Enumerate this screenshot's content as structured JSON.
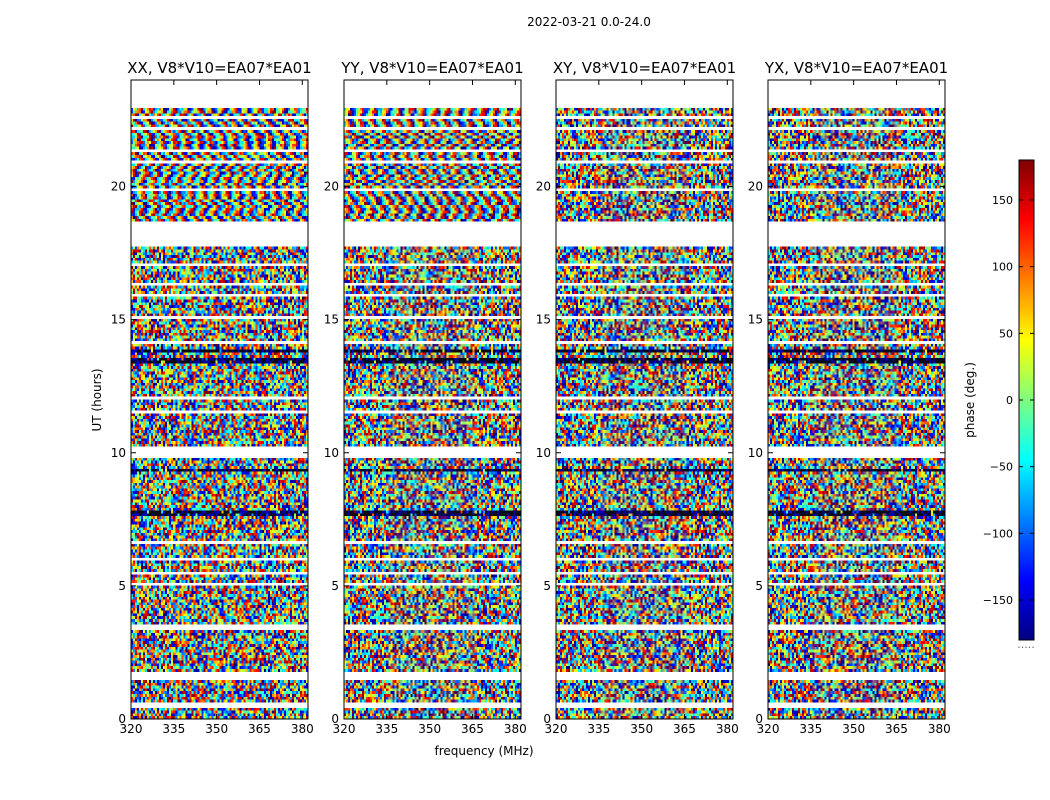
{
  "suptitle": "2022-03-21 0.0-24.0",
  "chart_data": {
    "type": "heatmap",
    "xlabel": "frequency (MHz)",
    "ylabel": "UT (hours)",
    "xlim": [
      320,
      382
    ],
    "ylim": [
      0,
      24
    ],
    "xticks": [
      "320",
      "335",
      "350",
      "365",
      "380"
    ],
    "xtick_values": [
      320,
      335,
      350,
      365,
      380
    ],
    "yticks": [
      "0",
      "5",
      "10",
      "15",
      "20"
    ],
    "ytick_values": [
      0,
      5,
      10,
      15,
      20
    ],
    "panels": [
      {
        "title": "XX, V8*V10=EA07*EA01",
        "structure": "fringe"
      },
      {
        "title": "YY, V8*V10=EA07*EA01",
        "structure": "fringe"
      },
      {
        "title": "XY, V8*V10=EA07*EA01",
        "structure": "noise"
      },
      {
        "title": "YX, V8*V10=EA07*EA01",
        "structure": "noise"
      }
    ],
    "data_extent_hours": [
      0.0,
      23.0
    ],
    "flagged_hours": [
      [
        0.45,
        0.6
      ],
      [
        1.45,
        1.75
      ],
      [
        3.35,
        3.55
      ],
      [
        5.05,
        5.15
      ],
      [
        5.45,
        5.55
      ],
      [
        5.95,
        6.05
      ],
      [
        6.55,
        6.65
      ],
      [
        9.85,
        10.25
      ],
      [
        11.45,
        11.55
      ],
      [
        12.05,
        12.15
      ],
      [
        14.05,
        14.15
      ],
      [
        15.05,
        15.15
      ],
      [
        15.85,
        15.95
      ],
      [
        16.25,
        16.35
      ],
      [
        17.05,
        17.15
      ],
      [
        17.7,
        18.7
      ],
      [
        19.85,
        19.95
      ],
      [
        20.85,
        20.95
      ],
      [
        21.25,
        21.35
      ],
      [
        22.15,
        22.25
      ],
      [
        22.55,
        22.65
      ]
    ],
    "dark_bands_hours": [
      [
        7.6,
        7.8
      ],
      [
        13.4,
        13.6
      ],
      [
        13.75,
        13.9
      ],
      [
        9.3,
        9.4
      ],
      [
        9.55,
        9.65
      ]
    ],
    "colorbar": {
      "label": "phase (deg.)",
      "range": [
        -180,
        180
      ],
      "ticks": [
        "−150",
        "−100",
        "−50",
        "0",
        "50",
        "100",
        "150"
      ],
      "tick_values": [
        -150,
        -100,
        -50,
        0,
        50,
        100,
        150
      ],
      "colormap": "jet",
      "colors": [
        "#00007f",
        "#0000ff",
        "#007fff",
        "#00ffff",
        "#7fff7f",
        "#ffff00",
        "#ff7f00",
        "#ff0000",
        "#7f0000"
      ]
    },
    "colorbar_footer": "....."
  }
}
